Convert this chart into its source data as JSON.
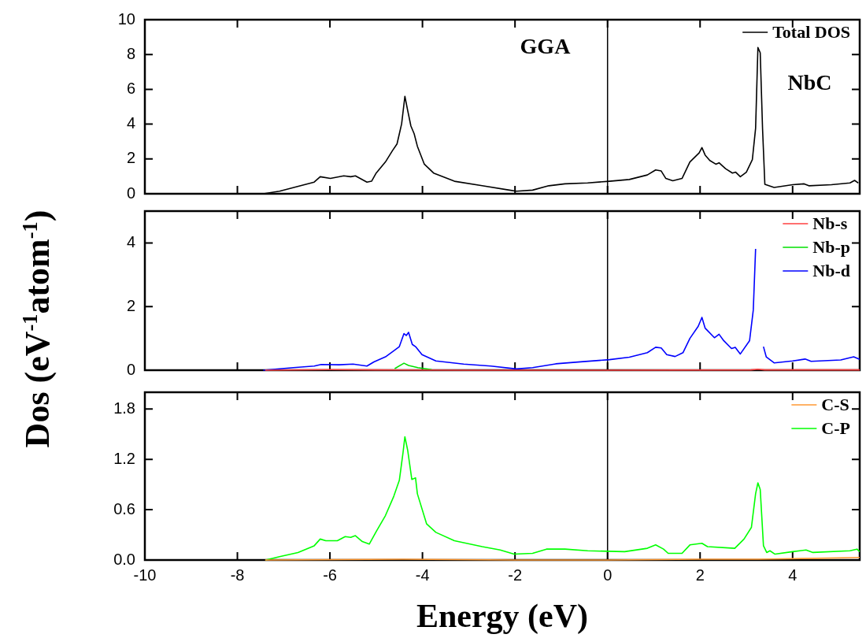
{
  "chart_data": [
    {
      "type": "line",
      "annotations": [
        "GGA",
        "NbC"
      ],
      "xlim": [
        -10,
        5.45
      ],
      "xticks": [
        -10,
        -8,
        -6,
        -4,
        -2,
        0,
        2,
        4
      ],
      "ylim": [
        0,
        10
      ],
      "yticks": [
        0,
        2,
        4,
        6,
        8,
        10
      ],
      "tick_labels": "y",
      "legend": "top right",
      "marker": "none",
      "ref_lines": [
        {
          "axis": "x",
          "value": 0,
          "color": "#000000"
        }
      ],
      "series": [
        {
          "name": "Total DOS",
          "color": "#000000",
          "x": [
            -7.44,
            -7.09,
            -6.34,
            -6.21,
            -5.99,
            -5.7,
            -5.55,
            -5.45,
            -5.2,
            -5.1,
            -5.0,
            -4.8,
            -4.65,
            -4.55,
            -4.45,
            -4.38,
            -4.32,
            -4.25,
            -4.18,
            -4.11,
            -3.96,
            -3.76,
            -3.31,
            -2.71,
            -2.12,
            -1.97,
            -1.62,
            -1.27,
            -0.92,
            -0.43,
            0.04,
            0.47,
            0.86,
            1.04,
            1.16,
            1.26,
            1.41,
            1.61,
            1.78,
            1.98,
            2.04,
            2.11,
            2.21,
            2.34,
            2.41,
            2.55,
            2.7,
            2.77,
            2.87,
            3.0,
            3.13,
            3.2,
            3.25,
            3.3,
            3.35,
            3.4,
            3.6,
            4.0,
            4.25,
            4.35,
            4.84,
            5.24,
            5.34,
            5.42
          ],
          "values": [
            0,
            0.15,
            0.67,
            0.98,
            0.88,
            1.03,
            0.98,
            1.03,
            0.67,
            0.72,
            1.19,
            1.83,
            2.47,
            2.86,
            4.02,
            5.6,
            4.79,
            3.89,
            3.45,
            2.73,
            1.7,
            1.19,
            0.72,
            0.46,
            0.21,
            0.15,
            0.21,
            0.46,
            0.57,
            0.62,
            0.72,
            0.82,
            1.08,
            1.37,
            1.31,
            0.88,
            0.75,
            0.88,
            1.83,
            2.35,
            2.65,
            2.22,
            1.91,
            1.7,
            1.78,
            1.44,
            1.19,
            1.24,
            0.98,
            1.24,
            1.96,
            3.76,
            8.4,
            8.1,
            3.76,
            0.54,
            0.36,
            0.52,
            0.57,
            0.46,
            0.52,
            0.62,
            0.77,
            0.62
          ]
        }
      ]
    },
    {
      "type": "line",
      "ylabel": "Dos (eV$^{-1}$atom$^{-1}$)",
      "xlim": [
        -10,
        5.45
      ],
      "xticks": [
        -10,
        -8,
        -6,
        -4,
        -2,
        0,
        2,
        4
      ],
      "ylim": [
        0,
        5
      ],
      "yticks": [
        0,
        2,
        4
      ],
      "tick_labels": "y",
      "legend": "top right",
      "marker": "none",
      "ref_lines": [
        {
          "axis": "x",
          "value": 0,
          "color": "#000000"
        }
      ],
      "series": [
        {
          "name": "Nb-s",
          "color": "#ff4040",
          "x": [
            -7.4,
            -6.0,
            -5.0,
            -3.0,
            0,
            3.1,
            3.25,
            3.4,
            5.45
          ],
          "values": [
            0,
            0.02,
            0.01,
            0,
            0,
            0.01,
            0.03,
            0.01,
            0.01
          ]
        },
        {
          "name": "Nb-p",
          "color": "#00e000",
          "x": [
            -4.6,
            -4.4,
            -4.3,
            -4.1,
            -3.8
          ],
          "values": [
            0.05,
            0.22,
            0.15,
            0.08,
            0.02
          ]
        },
        {
          "name": "Nb-d",
          "color": "#0000ff",
          "x": [
            -7.44,
            -6.79,
            -6.34,
            -6.19,
            -5.8,
            -5.5,
            -5.2,
            -5.05,
            -4.8,
            -4.62,
            -4.5,
            -4.4,
            -4.35,
            -4.3,
            -4.22,
            -4.15,
            -4.01,
            -3.71,
            -3.11,
            -2.52,
            -1.97,
            -1.62,
            -1.12,
            -0.53,
            0.04,
            0.47,
            0.86,
            1.04,
            1.16,
            1.28,
            1.46,
            1.63,
            1.78,
            1.96,
            2.04,
            2.11,
            2.31,
            2.41,
            2.51,
            2.68,
            2.76,
            2.87,
            3.07,
            3.15,
            3.2,
            3.23,
            3.3,
            3.37,
            3.43,
            3.6,
            4.0,
            4.27,
            4.4,
            5.04,
            5.32,
            5.45
          ],
          "values": [
            0,
            0.08,
            0.13,
            0.18,
            0.17,
            0.19,
            0.13,
            0.26,
            0.42,
            0.61,
            0.74,
            1.15,
            1.09,
            1.19,
            0.81,
            0.74,
            0.49,
            0.29,
            0.19,
            0.13,
            0.04,
            0.08,
            0.2,
            0.27,
            0.33,
            0.41,
            0.55,
            0.72,
            0.7,
            0.49,
            0.43,
            0.55,
            1.0,
            1.38,
            1.66,
            1.32,
            1.02,
            1.13,
            0.93,
            0.68,
            0.72,
            0.51,
            0.93,
            1.89,
            3.81,
            null,
            null,
            0.74,
            0.42,
            0.23,
            0.29,
            0.35,
            0.28,
            0.32,
            0.42,
            0.34
          ]
        }
      ]
    },
    {
      "type": "line",
      "xlabel": "Energy (eV)",
      "xlim": [
        -10,
        5.45
      ],
      "xticks": [
        -10,
        -8,
        -6,
        -4,
        -2,
        0,
        2,
        4
      ],
      "ylim": [
        0,
        2.0
      ],
      "yticks": [
        {
          "value": 0,
          "label": "0.0"
        },
        0.6,
        1.2,
        1.8
      ],
      "legend": "top right",
      "marker": "none",
      "ref_lines": [
        {
          "axis": "x",
          "value": 0,
          "color": "#000000"
        }
      ],
      "series": [
        {
          "name": "C-S",
          "color": "#ff9933",
          "x": [
            -7.4,
            -4.4,
            -2.0,
            0,
            2.0,
            3.25,
            4.5,
            5.45
          ],
          "values": [
            0,
            0.01,
            0,
            0,
            0.01,
            0.01,
            0.02,
            0.03
          ]
        },
        {
          "name": "C-P",
          "color": "#00ff00",
          "x": [
            -7.39,
            -7.09,
            -6.69,
            -6.34,
            -6.21,
            -6.09,
            -5.84,
            -5.67,
            -5.55,
            -5.45,
            -5.3,
            -5.15,
            -5.0,
            -4.8,
            -4.62,
            -4.5,
            -4.42,
            -4.38,
            -4.32,
            -4.23,
            -4.15,
            -4.11,
            -3.91,
            -3.71,
            -3.31,
            -2.71,
            -2.32,
            -2.02,
            -1.62,
            -1.32,
            -0.92,
            -0.43,
            0.37,
            0.86,
            1.04,
            1.21,
            1.31,
            1.61,
            1.78,
            2.04,
            2.16,
            2.75,
            2.95,
            3.11,
            3.2,
            3.25,
            3.3,
            3.37,
            3.44,
            3.51,
            3.62,
            4.0,
            4.29,
            4.44,
            5.24,
            5.39,
            5.45
          ],
          "values": [
            0,
            0.04,
            0.09,
            0.17,
            0.25,
            0.23,
            0.23,
            0.28,
            0.27,
            0.29,
            0.22,
            0.19,
            0.34,
            0.53,
            0.76,
            0.95,
            1.28,
            1.47,
            1.31,
            0.96,
            0.98,
            0.79,
            0.43,
            0.33,
            0.23,
            0.16,
            0.12,
            0.07,
            0.08,
            0.13,
            0.13,
            0.11,
            0.1,
            0.14,
            0.18,
            0.13,
            0.08,
            0.08,
            0.18,
            0.2,
            0.16,
            0.14,
            0.25,
            0.39,
            0.79,
            0.92,
            0.84,
            0.17,
            0.09,
            0.11,
            0.07,
            0.1,
            0.12,
            0.09,
            0.11,
            0.13,
            0.1
          ]
        }
      ]
    }
  ]
}
